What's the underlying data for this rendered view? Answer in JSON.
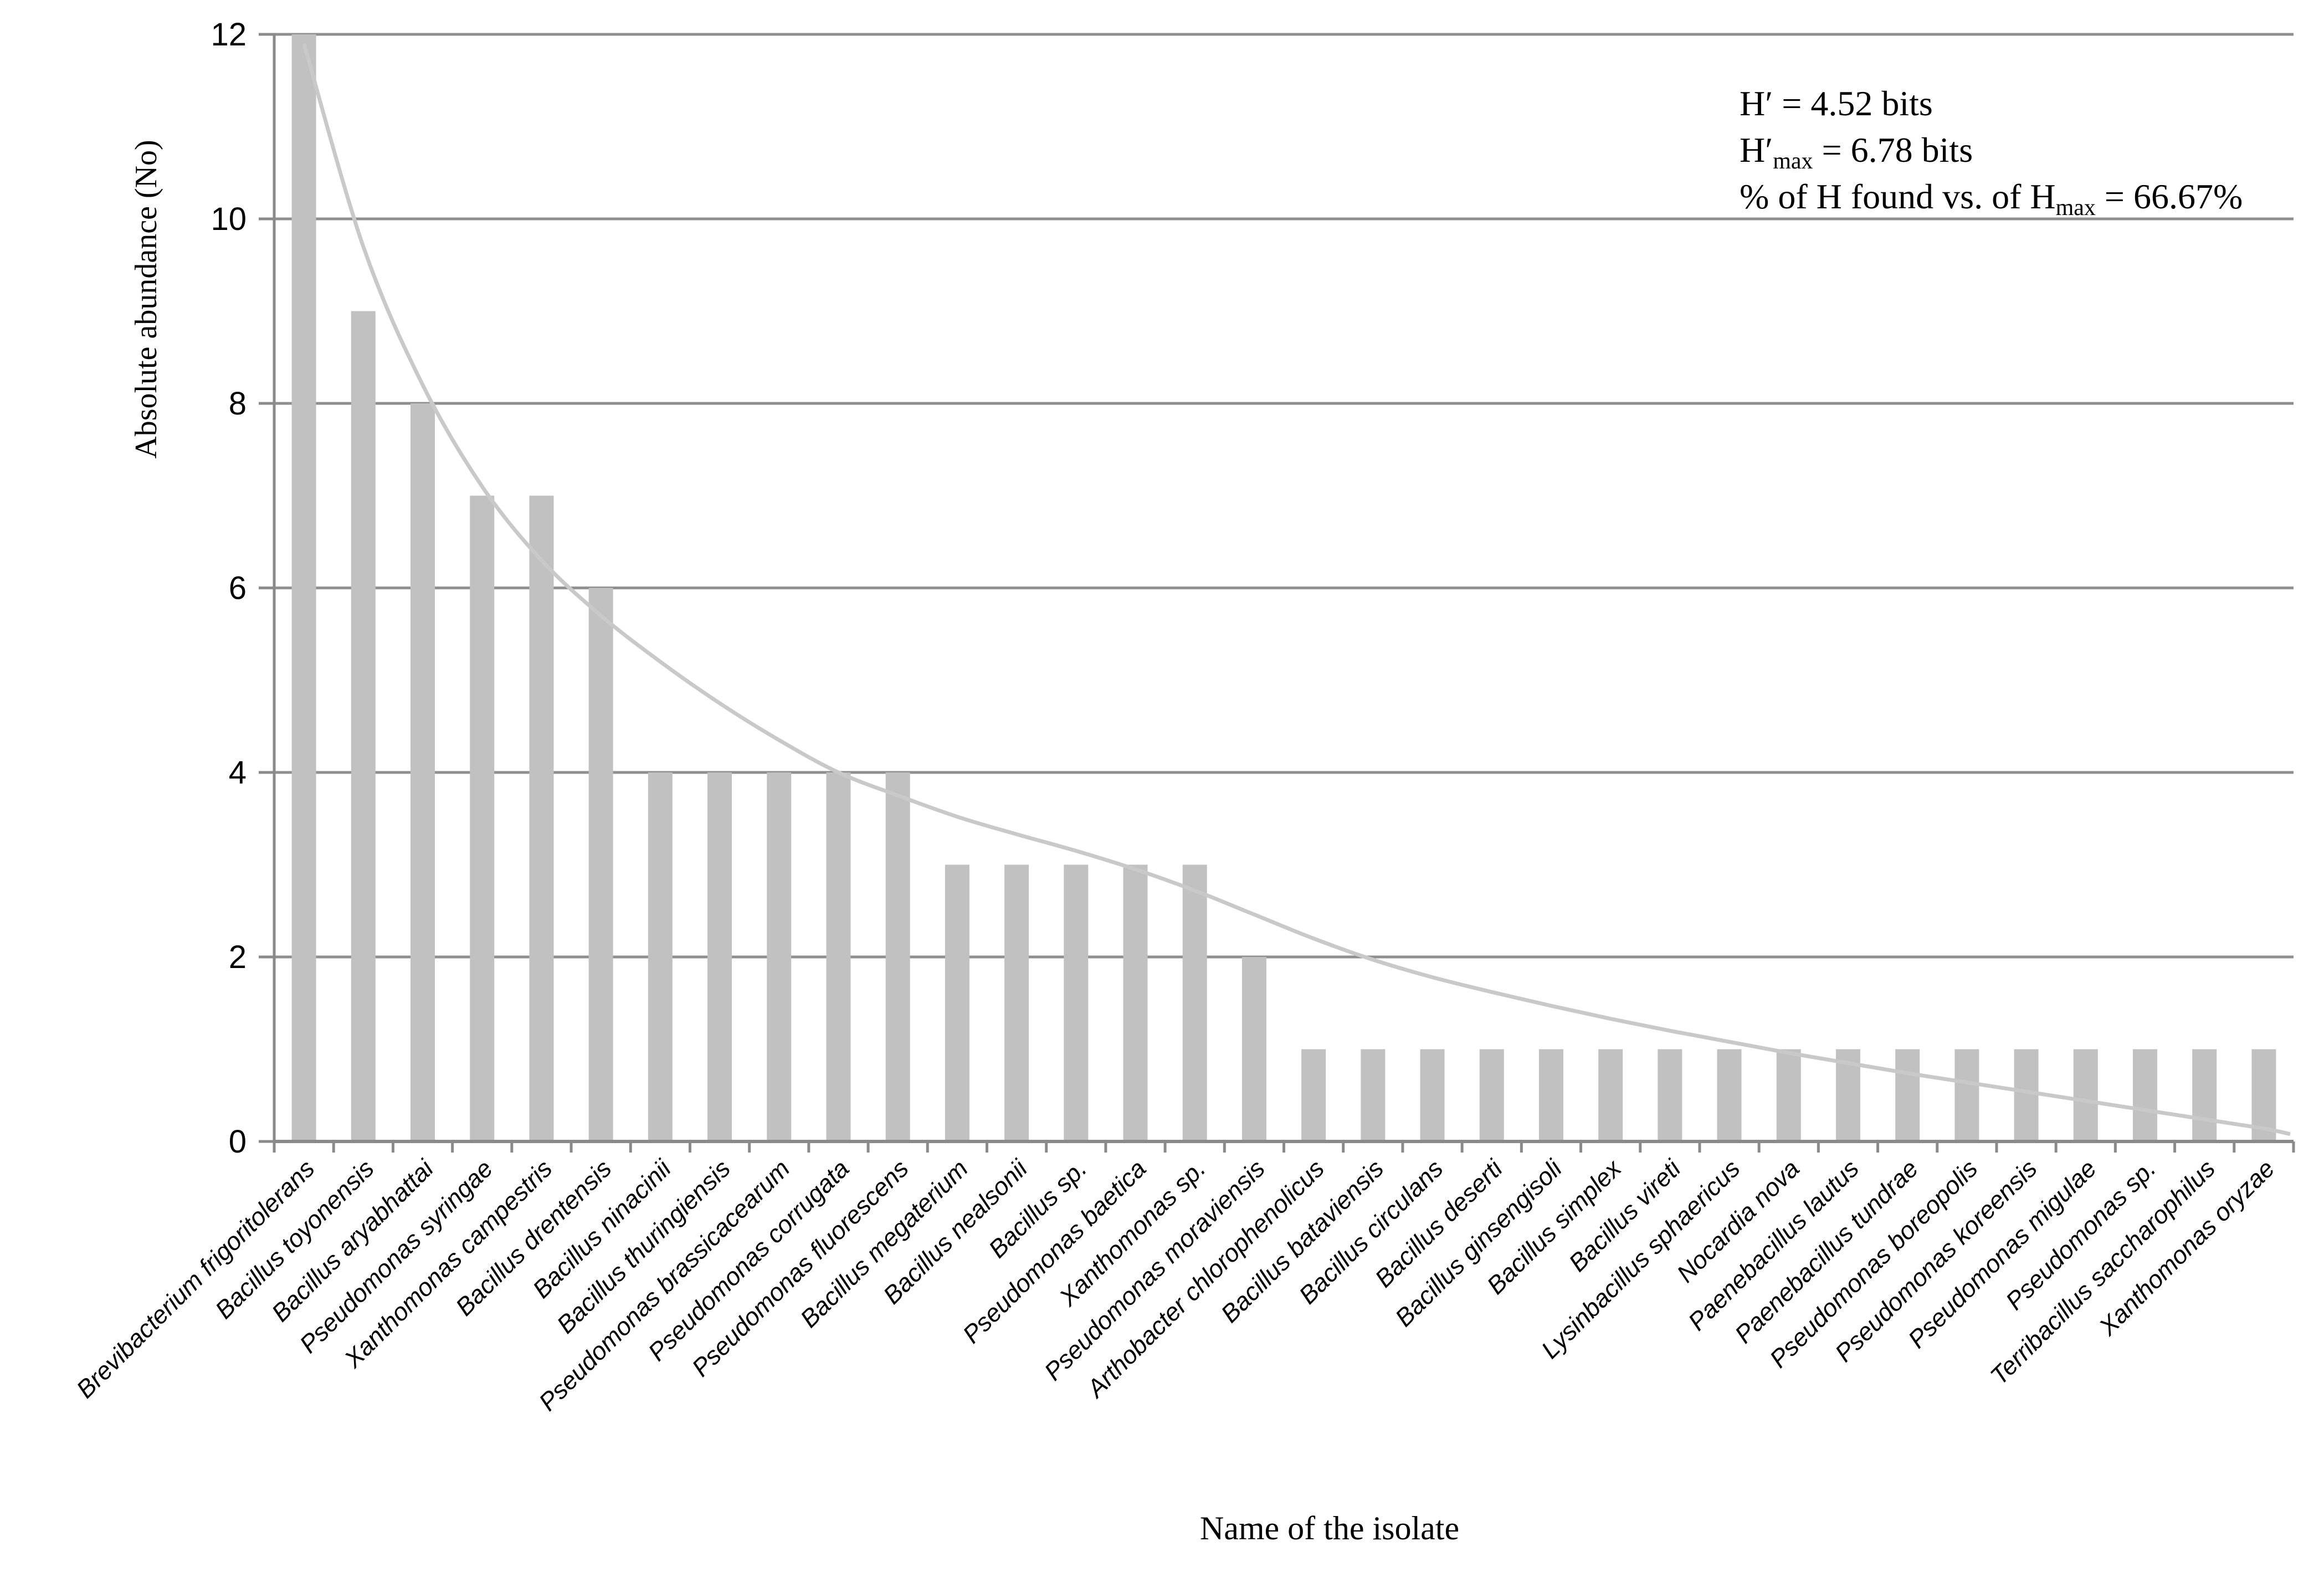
{
  "figure": {
    "y_axis_title": "Absolute abundance (No)",
    "x_axis_title": "Name of the isolate"
  },
  "annotations": {
    "lines": [
      {
        "parts": [
          {
            "t": "H′ = 4.52 bits"
          }
        ]
      },
      {
        "parts": [
          {
            "t": "H′"
          },
          {
            "t": "max",
            "sub": true
          },
          {
            "t": " = 6.78 bits"
          }
        ]
      },
      {
        "parts": [
          {
            "t": "% of H found vs. of H"
          },
          {
            "t": "max",
            "sub": true
          },
          {
            "t": " = 66.67%"
          }
        ]
      }
    ]
  },
  "chart_data": {
    "type": "bar",
    "title": "",
    "xlabel": "Name of the isolate",
    "ylabel": "Absolute abundance (No)",
    "ylim": [
      0,
      12
    ],
    "yticks": [
      0,
      2,
      4,
      6,
      8,
      10,
      12
    ],
    "grid": true,
    "legend_position": "none",
    "bar_color": "#c1c1c1",
    "gridline_color": "#8f8f8f",
    "axis_color": "#8a8a8a",
    "trend_color": "#c9c9c9",
    "text_color": "#000000",
    "categories": [
      "Brevibacterium frigoritolerans",
      "Bacillus toyonensis",
      "Bacillus aryabhattai",
      "Pseudomonas syringae",
      "Xanthomonas campestris",
      "Bacillus drentensis",
      "Bacillus ninacinii",
      "Bacillus thuringiensis",
      "Pseudomonas brassicacearum",
      "Pseudomonas corrugata",
      "Pseudomonas fluorescens",
      "Bacillus megaterium",
      "Bacillus nealsonii",
      "Bacillus sp.",
      "Pseudomonas baetica",
      "Xanthomonas sp.",
      "Pseudomonas moraviensis",
      "Arthobacter chlorophenolicus",
      "Bacillus bataviensis",
      "Bacillus circulans",
      "Bacillus deserti",
      "Bacillus ginsengisoli",
      "Bacillus simplex",
      "Bacillus vireti",
      "Lysinbacillus sphaericus",
      "Nocardia nova",
      "Paenebacillus lautus",
      "Paenebacillus tundrae",
      "Pseudomonas boreopolis",
      "Pseudomonas koreensis",
      "Pseudomonas migulae",
      "Pseudomonas sp.",
      "Terribacillus saccharophilus",
      "Xanthomonas oryzae"
    ],
    "values": [
      12,
      9,
      8,
      7,
      7,
      6,
      4,
      4,
      4,
      4,
      4,
      3,
      3,
      3,
      3,
      3,
      2,
      1,
      1,
      1,
      1,
      1,
      1,
      1,
      1,
      1,
      1,
      1,
      1,
      1,
      1,
      1,
      1,
      1
    ],
    "trend_curve_values": [
      11.9,
      9.7,
      8.2,
      7.1,
      6.3,
      5.7,
      5.2,
      4.75,
      4.35,
      4.0,
      3.75,
      3.52,
      3.33,
      3.15,
      2.95,
      2.72,
      2.46,
      2.2,
      1.97,
      1.78,
      1.62,
      1.47,
      1.33,
      1.2,
      1.08,
      0.96,
      0.85,
      0.74,
      0.64,
      0.54,
      0.44,
      0.34,
      0.24,
      0.14
    ],
    "trend_curve_end_value": 0.08
  }
}
